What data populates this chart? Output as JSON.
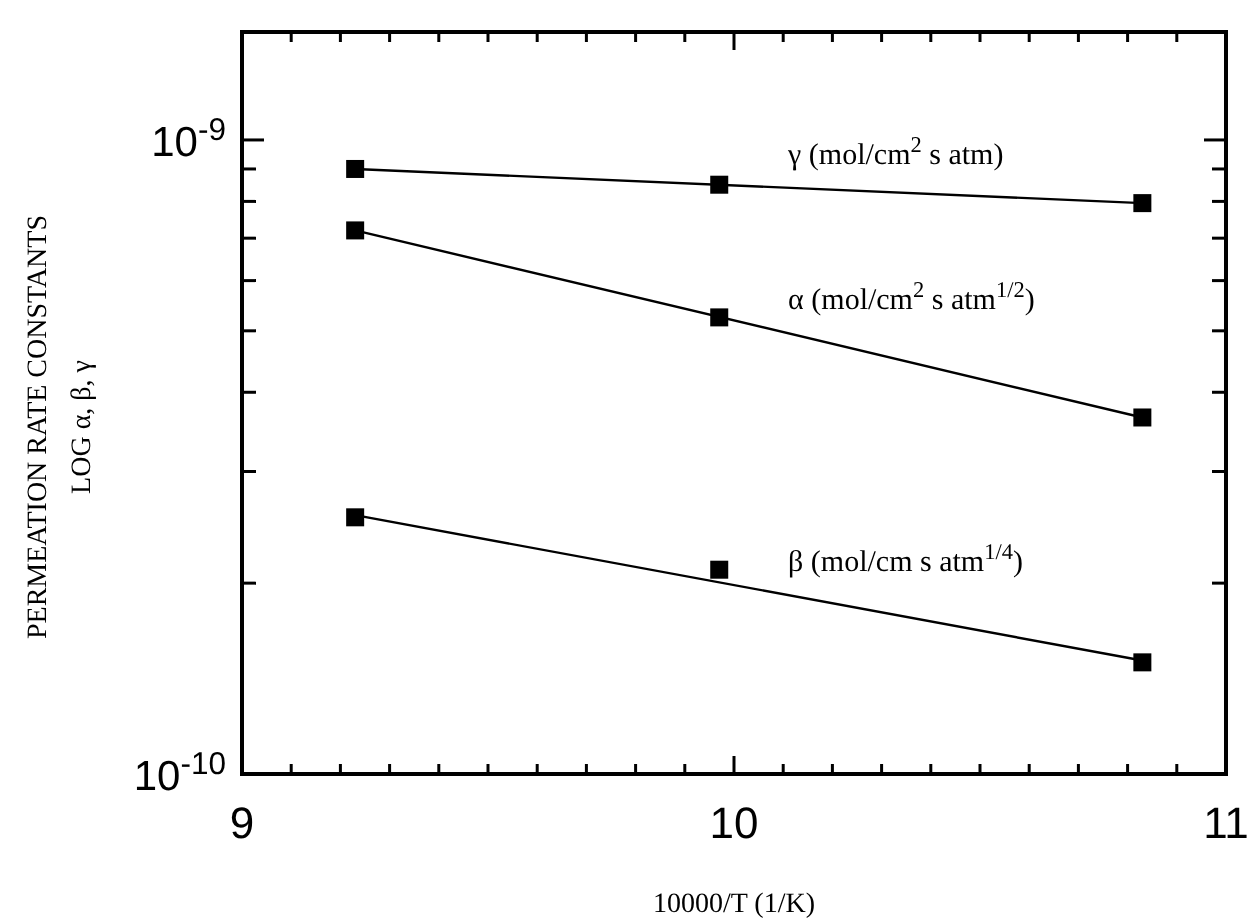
{
  "chart_data": {
    "type": "scatter",
    "xlabel": "10000/T  (1/K)",
    "ylabel": "PERMEATION RATE CONSTANTS\nLOG α,  β,  γ",
    "log": "y",
    "marker": "square",
    "grid": false,
    "xlim": [
      9,
      11
    ],
    "xticks": [
      9,
      {
        "value": 9.1,
        "label": null
      },
      {
        "value": 9.2,
        "label": null
      },
      {
        "value": 9.3,
        "label": null
      },
      {
        "value": 9.4,
        "label": null
      },
      {
        "value": 9.5,
        "label": null
      },
      {
        "value": 9.6,
        "label": null
      },
      {
        "value": 9.7,
        "label": null
      },
      {
        "value": 9.8,
        "label": null
      },
      {
        "value": 9.9,
        "label": null
      },
      10,
      {
        "value": 10.1,
        "label": null
      },
      {
        "value": 10.2,
        "label": null
      },
      {
        "value": 10.3,
        "label": null
      },
      {
        "value": 10.4,
        "label": null
      },
      {
        "value": 10.5,
        "label": null
      },
      {
        "value": 10.6,
        "label": null
      },
      {
        "value": 10.7,
        "label": null
      },
      {
        "value": 10.8,
        "label": null
      },
      {
        "value": 10.9,
        "label": null
      },
      11
    ],
    "ylim": [
      1e-10,
      1.48e-09
    ],
    "yticks": [
      {
        "value": 1e-10,
        "label": "10$^{-10}$"
      },
      {
        "value": 2e-10,
        "label": null
      },
      {
        "value": 3e-10,
        "label": null
      },
      {
        "value": 4e-10,
        "label": null
      },
      {
        "value": 5e-10,
        "label": null
      },
      {
        "value": 6e-10,
        "label": null
      },
      {
        "value": 7e-10,
        "label": null
      },
      {
        "value": 8e-10,
        "label": null
      },
      {
        "value": 9e-10,
        "label": null
      },
      {
        "value": 1e-09,
        "label": "10$^{-9}$"
      }
    ],
    "series": [
      {
        "color": "#000000",
        "x": [
          9.23,
          9.97,
          10.83
        ],
        "values": [
          9e-10,
          8.5e-10,
          7.95e-10
        ]
      },
      {
        "type": "line",
        "marker": "none",
        "name": "γ (mol/cm$^{2}$ s atm)",
        "color": "#000000",
        "x": [
          9.23,
          10.83
        ],
        "values": [
          9e-10,
          7.95e-10
        ]
      },
      {
        "color": "#000000",
        "x": [
          9.23,
          9.97,
          10.83
        ],
        "values": [
          7.2e-10,
          5.25e-10,
          3.65e-10
        ]
      },
      {
        "type": "line",
        "marker": "none",
        "name": "α (mol/cm$^{2}$ s atm$^{1/2}$)",
        "color": "#000000",
        "x": [
          9.23,
          10.83
        ],
        "values": [
          7.2e-10,
          3.65e-10
        ]
      },
      {
        "color": "#000000",
        "x": [
          9.23,
          9.97,
          10.83
        ],
        "values": [
          2.54e-10,
          2.1e-10,
          1.5e-10
        ]
      },
      {
        "type": "line",
        "marker": "none",
        "name": "β (mol/cm s atm$^{1/4}$)",
        "color": "#000000",
        "x": [
          9.23,
          10.83
        ],
        "values": [
          2.56e-10,
          1.51e-10
        ]
      }
    ]
  }
}
